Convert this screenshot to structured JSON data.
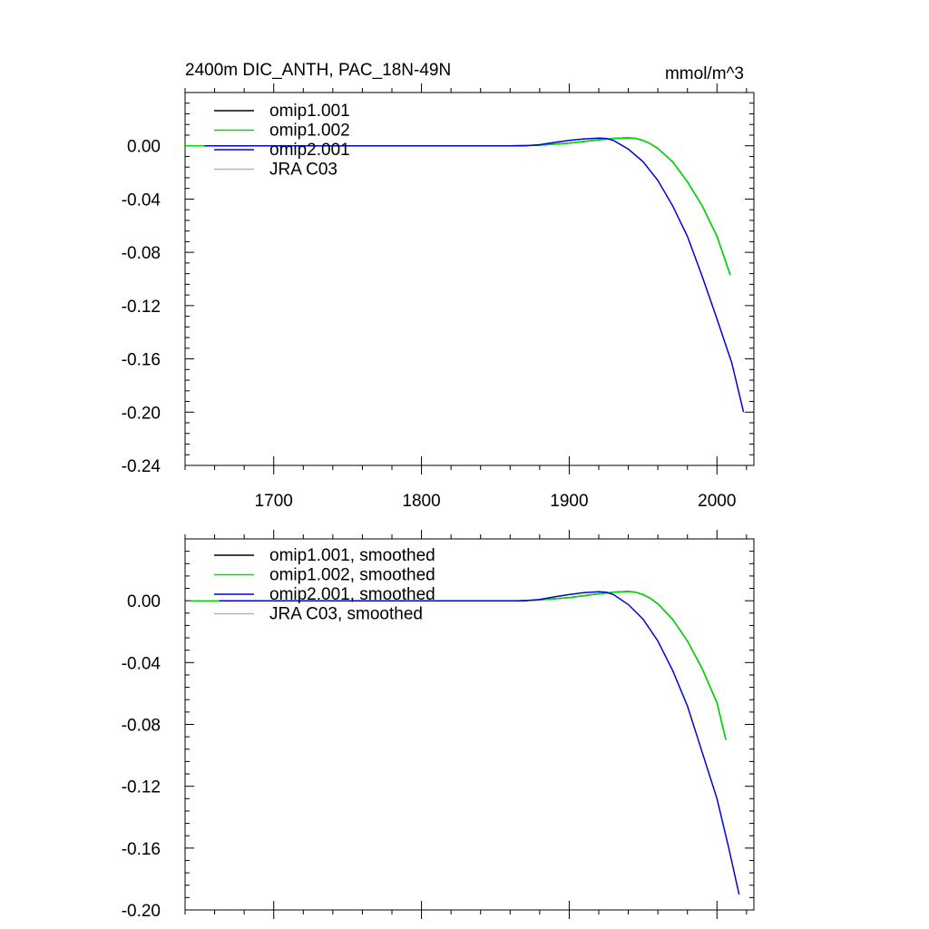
{
  "header": {
    "title": "2400m DIC_ANTH, PAC_18N-49N",
    "units": "mmol/m^3"
  },
  "colors": {
    "omip1_001": "#000000",
    "omip1_002": "#00e000",
    "omip2_001": "#0000e0",
    "jra_c03": "#b4b4b4"
  },
  "chart_data": [
    {
      "type": "line",
      "title": "2400m DIC_ANTH, PAC_18N-49N",
      "units": "mmol/m^3",
      "xlim": [
        1640,
        2025
      ],
      "ylim": [
        -0.24,
        0.04
      ],
      "x_ticks": [
        1700,
        1800,
        1900,
        2000
      ],
      "x_tick_labels": [
        "1700",
        "1800",
        "1900",
        "2000"
      ],
      "y_ticks": [
        0.0,
        -0.04,
        -0.08,
        -0.12,
        -0.16,
        -0.2,
        -0.24
      ],
      "y_tick_labels": [
        "0.00",
        "-0.04",
        "-0.08",
        "-0.12",
        "-0.16",
        "-0.20",
        "-0.24"
      ],
      "legend": {
        "placement": "top-left",
        "entries": [
          "omip1.001",
          "omip1.002",
          "omip2.001",
          "JRA C03"
        ]
      },
      "series": [
        {
          "name": "omip1.001",
          "color": "#000000",
          "points": [
            [
              1653,
              0
            ],
            [
              1700,
              0
            ],
            [
              1800,
              0
            ],
            [
              1860,
              0
            ],
            [
              1880,
              0.0005
            ],
            [
              1900,
              0.002
            ],
            [
              1920,
              0.0045
            ],
            [
              1930,
              0.0055
            ],
            [
              1940,
              0.006
            ],
            [
              1945,
              0.0055
            ],
            [
              1950,
              0.004
            ],
            [
              1955,
              0.0015
            ],
            [
              1960,
              -0.002
            ],
            [
              1970,
              -0.012
            ],
            [
              1980,
              -0.027
            ],
            [
              1990,
              -0.045
            ],
            [
              2000,
              -0.068
            ],
            [
              2005,
              -0.084
            ],
            [
              2009,
              -0.097
            ]
          ]
        },
        {
          "name": "omip1.002",
          "color": "#00e000",
          "points": [
            [
              1640,
              0
            ],
            [
              1700,
              0
            ],
            [
              1800,
              0
            ],
            [
              1860,
              0
            ],
            [
              1880,
              0.0005
            ],
            [
              1900,
              0.002
            ],
            [
              1920,
              0.0045
            ],
            [
              1930,
              0.0055
            ],
            [
              1940,
              0.006
            ],
            [
              1945,
              0.0055
            ],
            [
              1950,
              0.004
            ],
            [
              1955,
              0.0015
            ],
            [
              1960,
              -0.002
            ],
            [
              1970,
              -0.012
            ],
            [
              1980,
              -0.027
            ],
            [
              1990,
              -0.045
            ],
            [
              2000,
              -0.068
            ],
            [
              2005,
              -0.084
            ],
            [
              2009,
              -0.097
            ]
          ]
        },
        {
          "name": "omip2.001",
          "color": "#0000e0",
          "points": [
            [
              1653,
              0
            ],
            [
              1700,
              0
            ],
            [
              1800,
              0
            ],
            [
              1870,
              0
            ],
            [
              1880,
              0.0008
            ],
            [
              1890,
              0.0025
            ],
            [
              1900,
              0.004
            ],
            [
              1910,
              0.0052
            ],
            [
              1920,
              0.0058
            ],
            [
              1925,
              0.0055
            ],
            [
              1930,
              0.004
            ],
            [
              1940,
              -0.0025
            ],
            [
              1950,
              -0.012
            ],
            [
              1960,
              -0.026
            ],
            [
              1970,
              -0.045
            ],
            [
              1980,
              -0.068
            ],
            [
              1990,
              -0.098
            ],
            [
              2000,
              -0.13
            ],
            [
              2010,
              -0.163
            ],
            [
              2018,
              -0.2
            ]
          ]
        },
        {
          "name": "JRA C03",
          "color": "#b4b4b4",
          "points": []
        }
      ]
    },
    {
      "type": "line",
      "xlim": [
        1640,
        2025
      ],
      "ylim": [
        -0.2,
        0.04
      ],
      "x_ticks": [
        1700,
        1800,
        1900,
        2000
      ],
      "y_ticks": [
        0.0,
        -0.04,
        -0.08,
        -0.12,
        -0.16,
        -0.2
      ],
      "y_tick_labels": [
        "0.00",
        "-0.04",
        "-0.08",
        "-0.12",
        "-0.16",
        "-0.20"
      ],
      "legend": {
        "placement": "top-left",
        "entries": [
          "omip1.001, smoothed",
          "omip1.002, smoothed",
          "omip2.001, smoothed",
          "JRA C03, smoothed"
        ]
      },
      "series": [
        {
          "name": "omip1.001, smoothed",
          "color": "#000000",
          "points": [
            [
              1663,
              0
            ],
            [
              1700,
              0
            ],
            [
              1800,
              0
            ],
            [
              1865,
              0
            ],
            [
              1880,
              0.0005
            ],
            [
              1900,
              0.002
            ],
            [
              1920,
              0.0045
            ],
            [
              1930,
              0.0055
            ],
            [
              1940,
              0.006
            ],
            [
              1945,
              0.0055
            ],
            [
              1950,
              0.004
            ],
            [
              1955,
              0.0015
            ],
            [
              1960,
              -0.002
            ],
            [
              1970,
              -0.012
            ],
            [
              1980,
              -0.026
            ],
            [
              1990,
              -0.044
            ],
            [
              2000,
              -0.066
            ],
            [
              2006,
              -0.09
            ]
          ]
        },
        {
          "name": "omip1.002, smoothed",
          "color": "#00e000",
          "points": [
            [
              1644,
              0
            ],
            [
              1700,
              0
            ],
            [
              1800,
              0
            ],
            [
              1865,
              0
            ],
            [
              1880,
              0.0005
            ],
            [
              1900,
              0.002
            ],
            [
              1920,
              0.0045
            ],
            [
              1930,
              0.0055
            ],
            [
              1940,
              0.006
            ],
            [
              1945,
              0.0055
            ],
            [
              1950,
              0.004
            ],
            [
              1955,
              0.0015
            ],
            [
              1960,
              -0.002
            ],
            [
              1970,
              -0.012
            ],
            [
              1980,
              -0.026
            ],
            [
              1990,
              -0.044
            ],
            [
              2000,
              -0.066
            ],
            [
              2006,
              -0.09
            ]
          ]
        },
        {
          "name": "omip2.001, smoothed",
          "color": "#0000e0",
          "points": [
            [
              1663,
              0
            ],
            [
              1700,
              0
            ],
            [
              1800,
              0
            ],
            [
              1870,
              0
            ],
            [
              1880,
              0.0008
            ],
            [
              1890,
              0.0025
            ],
            [
              1900,
              0.004
            ],
            [
              1910,
              0.0052
            ],
            [
              1920,
              0.0058
            ],
            [
              1925,
              0.0055
            ],
            [
              1930,
              0.004
            ],
            [
              1940,
              -0.0025
            ],
            [
              1950,
              -0.012
            ],
            [
              1960,
              -0.026
            ],
            [
              1970,
              -0.045
            ],
            [
              1980,
              -0.068
            ],
            [
              1990,
              -0.098
            ],
            [
              2000,
              -0.128
            ],
            [
              2008,
              -0.16
            ],
            [
              2015,
              -0.19
            ]
          ]
        },
        {
          "name": "JRA C03, smoothed",
          "color": "#b4b4b4",
          "points": []
        }
      ]
    }
  ]
}
